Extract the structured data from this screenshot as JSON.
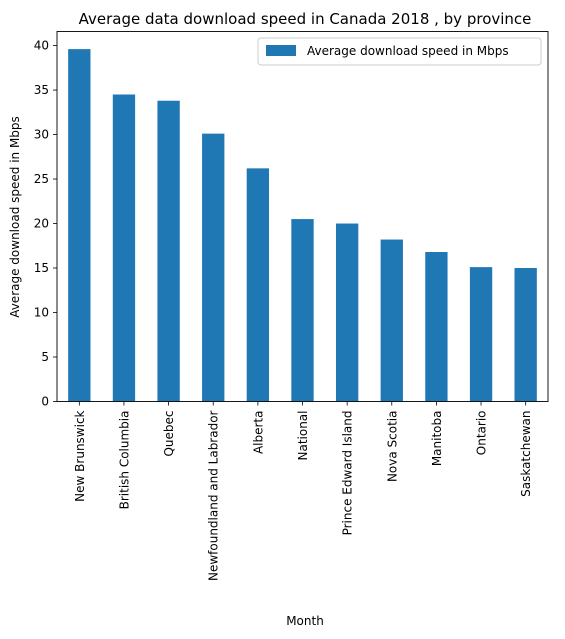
{
  "chart_data": {
    "type": "bar",
    "title": "Average data download speed in Canada 2018 , by province",
    "xlabel": "Month",
    "ylabel": "Average download speed in Mbps",
    "categories": [
      "New Brunswick",
      "British Columbia",
      "Quebec",
      "Newfoundland and Labrador",
      "Alberta",
      "National",
      "Prince Edward Island",
      "Nova Scotia",
      "Manitoba",
      "Ontario",
      "Saskatchewan"
    ],
    "series": [
      {
        "name": "Average download speed in Mbps",
        "values": [
          39.6,
          34.5,
          33.8,
          30.1,
          26.2,
          20.5,
          20.0,
          18.2,
          16.8,
          15.1,
          15.0
        ],
        "color": "#1f77b4"
      }
    ],
    "ylim": [
      0,
      41.58
    ],
    "yticks": [
      0,
      5,
      10,
      15,
      20,
      25,
      30,
      35,
      40
    ],
    "grid": false,
    "legend_position": "top-right"
  }
}
